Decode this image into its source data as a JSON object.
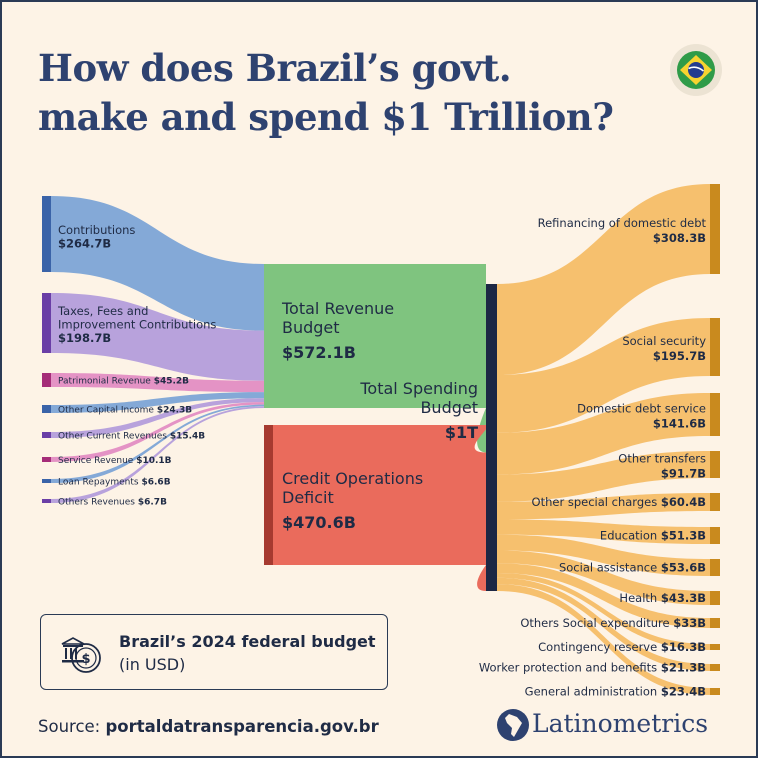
{
  "title_line1": "How does Brazil’s govt.",
  "title_line2": "make and spend $1 Trillion?",
  "flag_icon": "brazil-flag-icon",
  "info_box": {
    "line1": "Brazil’s 2024 federal budget",
    "line2": "(in USD)",
    "icon": "money-bag-coin-icon"
  },
  "source_label": "Source:",
  "source_value": "portaldatransparencia.gov.br",
  "brand_name": "Latinometrics",
  "brand_icon": "latin-america-map-icon",
  "colors": {
    "background": "#fdf3e6",
    "title": "#2e4270",
    "revenue": "#7fc47f",
    "deficit": "#ea6b5c",
    "spending": "#f6bd67",
    "total_spending_bar": "#1d2744"
  },
  "chart_data": {
    "type": "sankey",
    "unit": "USD",
    "sources": [
      {
        "label": "Contributions",
        "value_label": "$264.7B",
        "value": 264.7,
        "color": "#7aa3d6",
        "bar_color": "#3a63a8"
      },
      {
        "label": "Taxes, Fees and\nImprovement Contributions",
        "value_label": "$198.7B",
        "value": 198.7,
        "color": "#b29bdb",
        "bar_color": "#6a3ea6"
      },
      {
        "label": "Patrimonial Revenue",
        "value_label": "$45.2B",
        "value": 45.2,
        "color": "#e28bc2",
        "bar_color": "#a52c78"
      },
      {
        "label": "Other Capital Income",
        "value_label": "$24.3B",
        "value": 24.3,
        "color": "#7aa3d6",
        "bar_color": "#3a63a8"
      },
      {
        "label": "Other Current Revenues",
        "value_label": "$15.4B",
        "value": 15.4,
        "color": "#b29bdb",
        "bar_color": "#6a3ea6"
      },
      {
        "label": "Service Revenue",
        "value_label": "$10.1B",
        "value": 10.1,
        "color": "#e28bc2",
        "bar_color": "#a52c78"
      },
      {
        "label": "Loan Repayments",
        "value_label": "$6.6B",
        "value": 6.6,
        "color": "#7aa3d6",
        "bar_color": "#3a63a8"
      },
      {
        "label": "Others Revenues",
        "value_label": "$6.7B",
        "value": 6.7,
        "color": "#b29bdb",
        "bar_color": "#6a3ea6"
      }
    ],
    "middle": [
      {
        "label": "Total Revenue\nBudget",
        "value_label": "$572.1B",
        "value": 572.1,
        "color": "#7fc47f",
        "bar_color": "#3d8a47"
      },
      {
        "label": "Credit Operations\nDeficit",
        "value_label": "$470.6B",
        "value": 470.6,
        "color": "#ea6b5c",
        "bar_color": "#a63a30"
      }
    ],
    "total": {
      "label": "Total Spending\nBudget",
      "value_label": "$1T",
      "color": "#1d2744"
    },
    "targets": [
      {
        "label": "Refinancing of domestic debt",
        "value_label": "$308.3B",
        "value": 308.3
      },
      {
        "label": "Social security",
        "value_label": "$195.7B",
        "value": 195.7
      },
      {
        "label": "Domestic debt service",
        "value_label": "$141.6B",
        "value": 141.6
      },
      {
        "label": "Other transfers",
        "value_label": "$91.7B",
        "value": 91.7
      },
      {
        "label": "Other special charges",
        "value_label": "$60.4B",
        "value": 60.4
      },
      {
        "label": "Education",
        "value_label": "$51.3B",
        "value": 51.3
      },
      {
        "label": "Social assistance",
        "value_label": "$53.6B",
        "value": 53.6
      },
      {
        "label": "Health",
        "value_label": "$43.3B",
        "value": 43.3
      },
      {
        "label": "Others Social expenditure",
        "value_label": "$33B",
        "value": 33
      },
      {
        "label": "Contingency reserve",
        "value_label": "$16.3B",
        "value": 16.3
      },
      {
        "label": "Worker protection and benefits",
        "value_label": "$21.3B",
        "value": 21.3
      },
      {
        "label": "General administration",
        "value_label": "$23.4B",
        "value": 23.4
      }
    ]
  }
}
